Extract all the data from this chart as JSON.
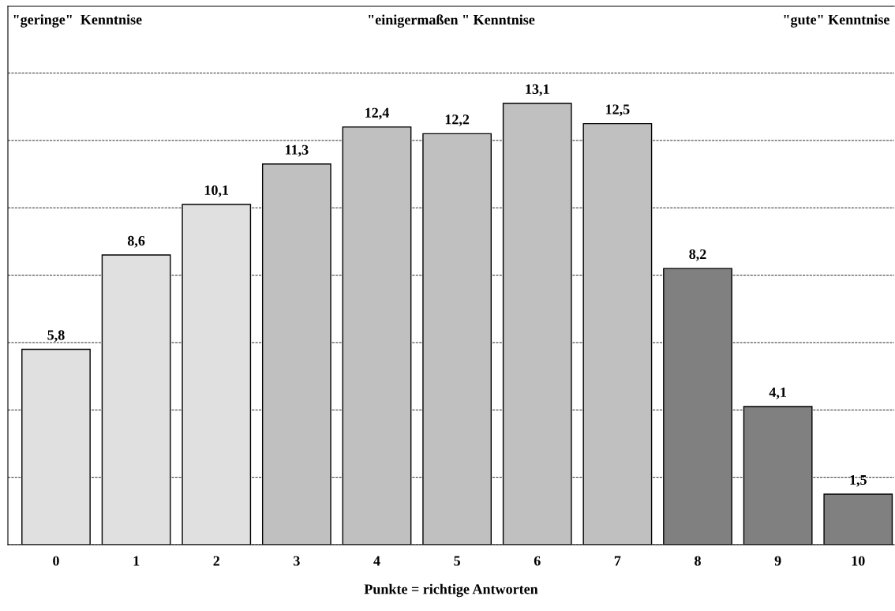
{
  "chart_data": {
    "type": "bar",
    "xlabel": "Punkte = richtige Antworten",
    "categories": [
      "0",
      "1",
      "2",
      "3",
      "4",
      "5",
      "6",
      "7",
      "8",
      "9",
      "10"
    ],
    "values": [
      5.8,
      8.6,
      10.1,
      11.3,
      12.4,
      12.2,
      13.1,
      12.5,
      8.2,
      4.1,
      1.5
    ],
    "colors": [
      "#e0e0e0",
      "#e0e0e0",
      "#e0e0e0",
      "#c0c0c0",
      "#c0c0c0",
      "#c0c0c0",
      "#c0c0c0",
      "#c0c0c0",
      "#808080",
      "#808080",
      "#808080"
    ],
    "value_labels": [
      "5,8",
      "8,6",
      "10,1",
      "11,3",
      "12,4",
      "12,2",
      "13,1",
      "12,5",
      "8,2",
      "4,1",
      "1,5"
    ],
    "tick_labels": "x",
    "grid": "y",
    "line_style": "dashed",
    "annotations": [
      "\"geringe\"  Kenntnise",
      "\"einigermaßen \" Kenntnise",
      "\"gute\" Kenntnise"
    ]
  }
}
